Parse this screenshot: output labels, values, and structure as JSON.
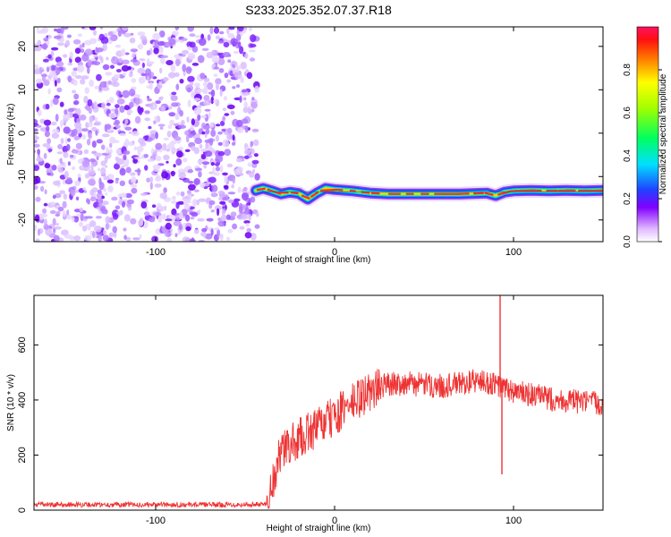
{
  "title": "S233.2025.352.07.37.R18",
  "colors": {
    "snr_line": "#ee3333",
    "scatter_noise": "#8a2be2",
    "ridge_core": "#ff3020",
    "ridge_edge": "#2040ff"
  },
  "chart_data": [
    {
      "type": "heatmap",
      "name": "spectrogram",
      "xlabel": "Height of straight line (km)",
      "ylabel": "Frequency (Hz)",
      "xlim": [
        -168,
        150
      ],
      "ylim": [
        -25,
        24.5
      ],
      "xticks": [
        {
          "value": -100,
          "label": "-100"
        },
        {
          "value": 0,
          "label": "0"
        },
        {
          "value": 100,
          "label": "100"
        }
      ],
      "yticks": [
        {
          "value": -20,
          "label": "-20"
        },
        {
          "value": -10,
          "label": "-10"
        },
        {
          "value": 0,
          "label": "0"
        },
        {
          "value": 10,
          "label": "10"
        },
        {
          "value": 20,
          "label": "20"
        }
      ],
      "noise_region_x": [
        -168,
        -45
      ],
      "ridge": {
        "x_start": -45,
        "x_end": 150,
        "frequency_hz": -13.5,
        "points": [
          [
            -44,
            -13.2
          ],
          [
            -40,
            -12.7
          ],
          [
            -35,
            -13.3
          ],
          [
            -30,
            -14.0
          ],
          [
            -25,
            -13.6
          ],
          [
            -20,
            -13.9
          ],
          [
            -15,
            -15.2
          ],
          [
            -10,
            -13.8
          ],
          [
            -5,
            -12.7
          ],
          [
            0,
            -13.0
          ],
          [
            10,
            -13.3
          ],
          [
            20,
            -13.8
          ],
          [
            30,
            -14.0
          ],
          [
            50,
            -14.0
          ],
          [
            70,
            -14.0
          ],
          [
            85,
            -13.8
          ],
          [
            90,
            -14.4
          ],
          [
            95,
            -13.6
          ],
          [
            100,
            -13.3
          ],
          [
            110,
            -13.2
          ],
          [
            120,
            -13.3
          ],
          [
            130,
            -13.2
          ],
          [
            140,
            -13.3
          ],
          [
            150,
            -13.2
          ]
        ]
      }
    },
    {
      "type": "colorbar",
      "name": "amplitude-colorbar",
      "label": "Normalized spectral amplitude",
      "range": [
        0,
        1
      ],
      "ticks": [
        {
          "value": 0.0,
          "label": "0.0"
        },
        {
          "value": 0.2,
          "label": "0.2"
        },
        {
          "value": 0.4,
          "label": "0.4"
        },
        {
          "value": 0.6,
          "label": "0.6"
        },
        {
          "value": 0.8,
          "label": "0.8"
        }
      ]
    },
    {
      "type": "line",
      "name": "snr",
      "xlabel": "Height of straight line (km)",
      "ylabel": "SNR (10 * v/v)",
      "xlim": [
        -168,
        150
      ],
      "ylim": [
        0,
        780
      ],
      "xticks": [
        {
          "value": -100,
          "label": "-100"
        },
        {
          "value": 0,
          "label": "0"
        },
        {
          "value": 100,
          "label": "100"
        }
      ],
      "yticks": [
        {
          "value": 0,
          "label": "0"
        },
        {
          "value": 200,
          "label": "200"
        },
        {
          "value": 400,
          "label": "400"
        },
        {
          "value": 600,
          "label": "600"
        }
      ],
      "trend": [
        [
          -168,
          20
        ],
        [
          -50,
          20
        ],
        [
          -38,
          22
        ],
        [
          -34,
          120
        ],
        [
          -30,
          210
        ],
        [
          -20,
          260
        ],
        [
          -10,
          300
        ],
        [
          0,
          340
        ],
        [
          10,
          390
        ],
        [
          20,
          430
        ],
        [
          30,
          460
        ],
        [
          40,
          460
        ],
        [
          60,
          450
        ],
        [
          80,
          470
        ],
        [
          90,
          455
        ],
        [
          100,
          430
        ],
        [
          120,
          405
        ],
        [
          140,
          390
        ],
        [
          150,
          390
        ]
      ],
      "spikes": [
        {
          "x": 92.5,
          "value": 780
        },
        {
          "x": 93.5,
          "value": 130
        }
      ]
    }
  ]
}
